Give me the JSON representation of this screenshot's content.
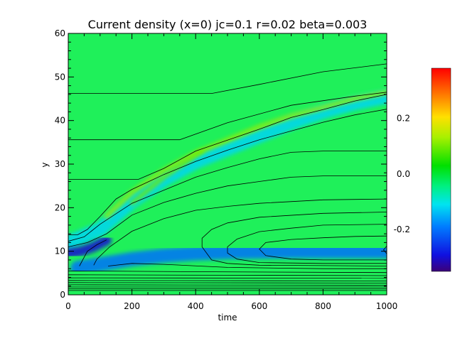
{
  "chart_data": {
    "type": "heatmap",
    "title": "Current density (x=0) jc=0.1 r=0.02 beta=0.003",
    "xlabel": "time",
    "ylabel": "y",
    "xlim": [
      0,
      1000
    ],
    "ylim": [
      0,
      60
    ],
    "x_ticks": [
      "0",
      "200",
      "400",
      "600",
      "800",
      "1000"
    ],
    "x_tick_values": [
      0,
      200,
      400,
      600,
      800,
      1000
    ],
    "y_ticks": [
      "0",
      "10",
      "20",
      "30",
      "40",
      "50",
      "60"
    ],
    "y_tick_values": [
      0,
      10,
      20,
      30,
      40,
      50,
      60
    ],
    "colorbar": {
      "range": [
        -0.35,
        0.38
      ],
      "ticks": [
        "0.2",
        "0.0",
        "-0.2"
      ],
      "tick_values": [
        0.2,
        0.0,
        -0.2
      ],
      "colormap": "rainbow"
    },
    "background_value": 0.0,
    "features": [
      {
        "name": "negative-band-upper",
        "value": -0.12,
        "path": [
          [
            0,
            12
          ],
          [
            100,
            15
          ],
          [
            200,
            21.5
          ],
          [
            300,
            26.5
          ],
          [
            400,
            30.5
          ],
          [
            500,
            33.5
          ],
          [
            600,
            36.5
          ],
          [
            700,
            39.5
          ],
          [
            800,
            42
          ],
          [
            900,
            44
          ],
          [
            1000,
            45.5
          ]
        ]
      },
      {
        "name": "positive-band-upper",
        "value": 0.12,
        "path": [
          [
            120,
            18
          ],
          [
            200,
            23.5
          ],
          [
            300,
            28.5
          ],
          [
            400,
            32.5
          ],
          [
            500,
            35.5
          ],
          [
            600,
            38.5
          ],
          [
            700,
            41
          ],
          [
            800,
            43
          ],
          [
            900,
            45
          ],
          [
            1000,
            46.5
          ]
        ]
      },
      {
        "name": "negative-band-lower",
        "value": -0.2,
        "path": [
          [
            30,
            6.2
          ],
          [
            100,
            7
          ],
          [
            200,
            8.2
          ],
          [
            300,
            9
          ],
          [
            400,
            9.5
          ],
          [
            500,
            9.8
          ],
          [
            600,
            9.9
          ],
          [
            700,
            10
          ],
          [
            800,
            10
          ],
          [
            900,
            10
          ],
          [
            1000,
            10
          ]
        ]
      },
      {
        "name": "negative-core-left",
        "value": -0.3,
        "path": [
          [
            0,
            9.5
          ],
          [
            40,
            10
          ],
          [
            80,
            11
          ],
          [
            120,
            12.5
          ]
        ]
      },
      {
        "name": "positive-wedge",
        "value": 0.1,
        "path": [
          [
            200,
            21
          ],
          [
            300,
            27
          ],
          [
            420,
            33
          ]
        ]
      }
    ],
    "contours": [
      {
        "path": [
          [
            0,
            46.2
          ],
          [
            360,
            46.2
          ],
          [
            450,
            46.2
          ],
          [
            600,
            48.3
          ],
          [
            800,
            51.2
          ],
          [
            1000,
            53
          ]
        ]
      },
      {
        "path": [
          [
            0,
            35.6
          ],
          [
            270,
            35.6
          ],
          [
            350,
            35.6
          ],
          [
            500,
            39.5
          ],
          [
            700,
            43.5
          ],
          [
            900,
            45.6
          ],
          [
            1000,
            46.5
          ]
        ]
      },
      {
        "path": [
          [
            0,
            26.5
          ],
          [
            170,
            26.5
          ],
          [
            220,
            26.5
          ],
          [
            300,
            29
          ],
          [
            400,
            33
          ],
          [
            500,
            35.5
          ],
          [
            600,
            38
          ],
          [
            700,
            40.7
          ],
          [
            800,
            42.5
          ],
          [
            900,
            44.5
          ],
          [
            1000,
            46
          ]
        ]
      },
      {
        "path": [
          [
            0,
            13.8
          ],
          [
            30,
            13.8
          ],
          [
            60,
            15
          ],
          [
            100,
            18
          ],
          [
            150,
            22
          ],
          [
            200,
            24.2
          ],
          [
            300,
            27.6
          ],
          [
            400,
            30.6
          ],
          [
            500,
            33.2
          ],
          [
            600,
            35.6
          ],
          [
            700,
            37.6
          ],
          [
            800,
            39.6
          ],
          [
            900,
            41.3
          ],
          [
            1000,
            42.6
          ]
        ]
      },
      {
        "path": [
          [
            0,
            12.3
          ],
          [
            50,
            13.3
          ],
          [
            100,
            16.2
          ],
          [
            200,
            21
          ],
          [
            300,
            24
          ],
          [
            400,
            27
          ],
          [
            500,
            29.2
          ],
          [
            600,
            31.2
          ],
          [
            700,
            32.7
          ],
          [
            800,
            33
          ],
          [
            900,
            33
          ],
          [
            1000,
            33
          ]
        ]
      },
      {
        "path": [
          [
            0,
            11
          ],
          [
            60,
            12
          ],
          [
            120,
            14
          ],
          [
            200,
            18.3
          ],
          [
            300,
            21.2
          ],
          [
            400,
            23.3
          ],
          [
            500,
            25
          ],
          [
            600,
            26
          ],
          [
            700,
            27
          ],
          [
            800,
            27.3
          ],
          [
            900,
            27.3
          ],
          [
            1000,
            27.3
          ]
        ]
      },
      {
        "path": [
          [
            35,
            6.6
          ],
          [
            60,
            10
          ],
          [
            90,
            11.5
          ],
          [
            120,
            12.6
          ]
        ]
      },
      {
        "path": [
          [
            80,
            6.8
          ],
          [
            90,
            8.2
          ],
          [
            130,
            11
          ],
          [
            200,
            14.6
          ],
          [
            300,
            17.5
          ],
          [
            400,
            19.4
          ],
          [
            500,
            20.3
          ],
          [
            600,
            21
          ],
          [
            800,
            21.8
          ],
          [
            1000,
            22
          ]
        ]
      },
      {
        "path": [
          [
            1000,
            19
          ],
          [
            800,
            18.7
          ],
          [
            600,
            17.8
          ],
          [
            500,
            16.5
          ],
          [
            450,
            15
          ],
          [
            420,
            13
          ],
          [
            420,
            11
          ],
          [
            450,
            8
          ],
          [
            500,
            7.2
          ],
          [
            600,
            6.8
          ],
          [
            800,
            6.7
          ],
          [
            1000,
            6.6
          ]
        ]
      },
      {
        "path": [
          [
            1000,
            16.2
          ],
          [
            800,
            16
          ],
          [
            700,
            15.3
          ],
          [
            600,
            14.5
          ],
          [
            530,
            12.8
          ],
          [
            500,
            11
          ],
          [
            500,
            9.6
          ],
          [
            530,
            8.2
          ],
          [
            600,
            7.4
          ],
          [
            800,
            7.2
          ],
          [
            1000,
            7.2
          ]
        ]
      },
      {
        "path": [
          [
            1000,
            13.5
          ],
          [
            900,
            13.4
          ],
          [
            800,
            13.1
          ],
          [
            700,
            12.7
          ],
          [
            620,
            12
          ],
          [
            600,
            10.5
          ],
          [
            620,
            9
          ],
          [
            700,
            8.2
          ],
          [
            800,
            8
          ],
          [
            1000,
            8
          ]
        ]
      },
      {
        "path": [
          [
            1000,
            11.2
          ],
          [
            990,
            10.3
          ],
          [
            1000,
            9.4
          ]
        ]
      },
      {
        "path": [
          [
            125,
            6.6
          ],
          [
            200,
            7.2
          ],
          [
            300,
            7
          ],
          [
            500,
            6.3
          ],
          [
            800,
            6
          ],
          [
            1000,
            6
          ]
        ]
      },
      {
        "path": [
          [
            0,
            5.5
          ],
          [
            400,
            5.3
          ],
          [
            1000,
            5.1
          ]
        ]
      },
      {
        "path": [
          [
            0,
            4.6
          ],
          [
            500,
            4.5
          ],
          [
            1000,
            4.4
          ]
        ]
      },
      {
        "path": [
          [
            0,
            3.9
          ],
          [
            1000,
            3.8
          ]
        ]
      },
      {
        "path": [
          [
            0,
            3.3
          ],
          [
            1000,
            3.2
          ]
        ]
      },
      {
        "path": [
          [
            0,
            2.8
          ],
          [
            1000,
            2.7
          ]
        ]
      },
      {
        "path": [
          [
            0,
            2.3
          ],
          [
            1000,
            2.2
          ]
        ]
      },
      {
        "path": [
          [
            0,
            1.8
          ],
          [
            1000,
            1.8
          ]
        ]
      },
      {
        "path": [
          [
            0,
            1.4
          ],
          [
            1000,
            1.4
          ]
        ]
      },
      {
        "path": [
          [
            0,
            1.0
          ],
          [
            1000,
            1.0
          ]
        ]
      }
    ]
  }
}
